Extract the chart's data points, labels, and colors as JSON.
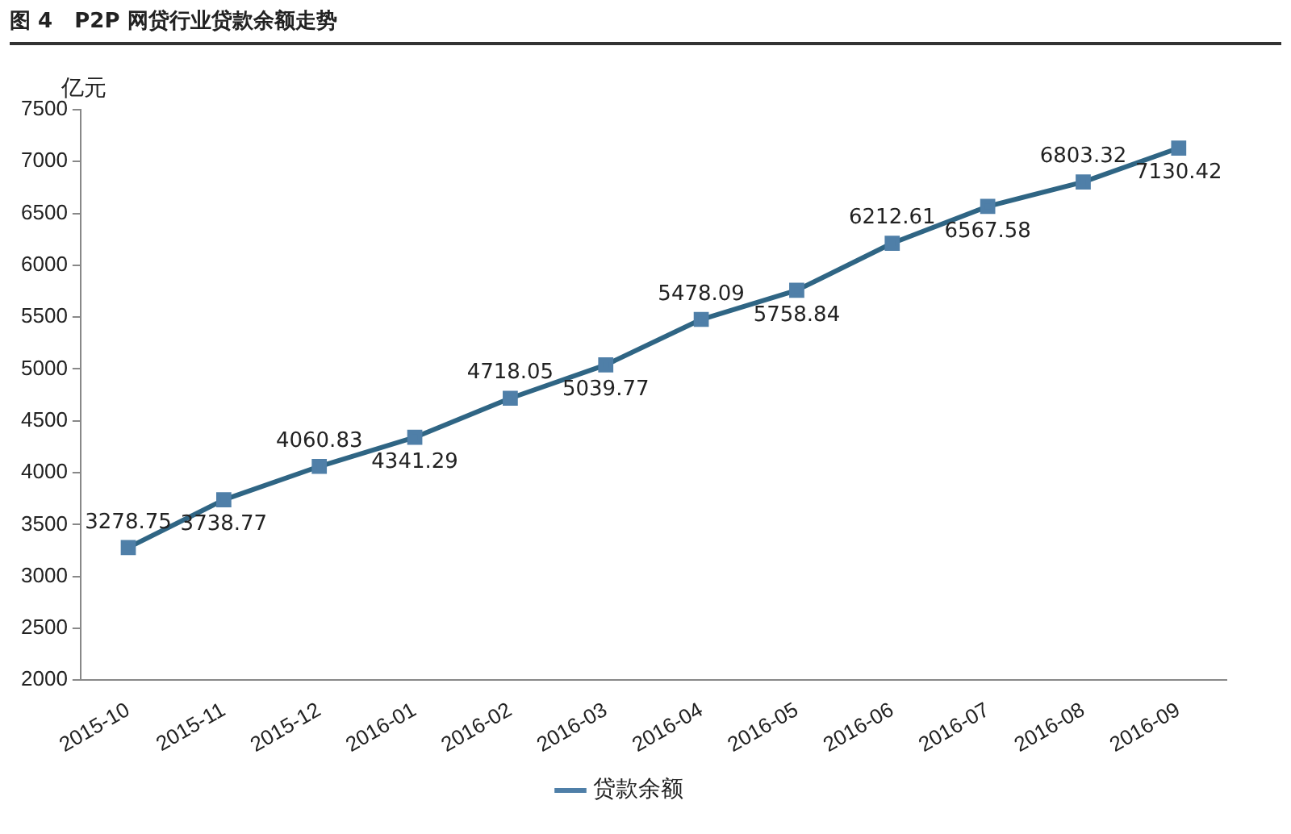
{
  "chart_data": {
    "type": "line",
    "title": "图 4   P2P 网贷行业贷款余额走势",
    "ylabel": "亿元",
    "categories": [
      "2015-10",
      "2015-11",
      "2015-12",
      "2016-01",
      "2016-02",
      "2016-03",
      "2016-04",
      "2016-05",
      "2016-06",
      "2016-07",
      "2016-08",
      "2016-09"
    ],
    "series": [
      {
        "name": "贷款余额",
        "color": "#2f6584",
        "values": [
          3278.75,
          3738.77,
          4060.83,
          4341.29,
          4718.05,
          5039.77,
          5478.09,
          5758.84,
          6212.61,
          6567.58,
          6803.32,
          7130.42
        ]
      }
    ],
    "ylim": [
      2000,
      7500
    ],
    "yticks": [
      2000,
      2500,
      3000,
      3500,
      4000,
      4500,
      5000,
      5500,
      6000,
      6500,
      7000,
      7500
    ],
    "grid": false,
    "legend": "bottom",
    "marker": "square",
    "line_style": "solid",
    "data_labels": true
  }
}
